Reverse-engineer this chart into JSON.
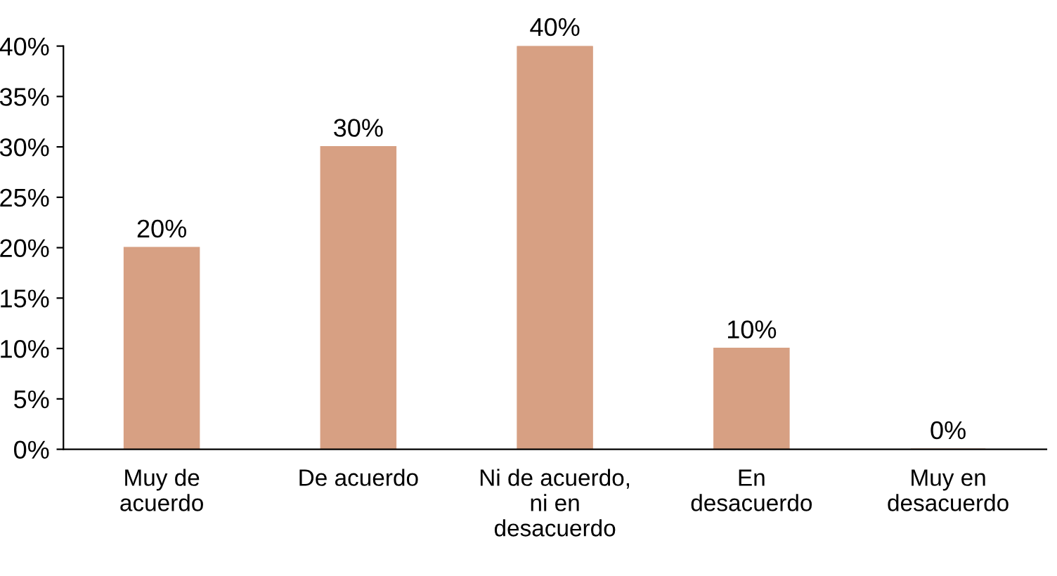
{
  "chart_data": {
    "type": "bar",
    "categories": [
      "Muy de\nacuerdo",
      "De acuerdo",
      "Ni de acuerdo,\nni en\ndesacuerdo",
      "En\ndesacuerdo",
      "Muy en\ndesacuerdo"
    ],
    "values": [
      20,
      30,
      40,
      10,
      0
    ],
    "value_labels": [
      "20%",
      "30%",
      "40%",
      "10%",
      "0%"
    ],
    "color": "#d7a083",
    "ylim": [
      0,
      40
    ],
    "yticks": [
      {
        "value": 0,
        "label": "0%"
      },
      {
        "value": 5,
        "label": "5%"
      },
      {
        "value": 10,
        "label": "10%"
      },
      {
        "value": 15,
        "label": "15%"
      },
      {
        "value": 20,
        "label": "20%"
      },
      {
        "value": 25,
        "label": "25%"
      },
      {
        "value": 30,
        "label": "30%"
      },
      {
        "value": 35,
        "label": "35%"
      },
      {
        "value": 40,
        "label": "40%"
      }
    ],
    "grid": false,
    "legend": false
  }
}
